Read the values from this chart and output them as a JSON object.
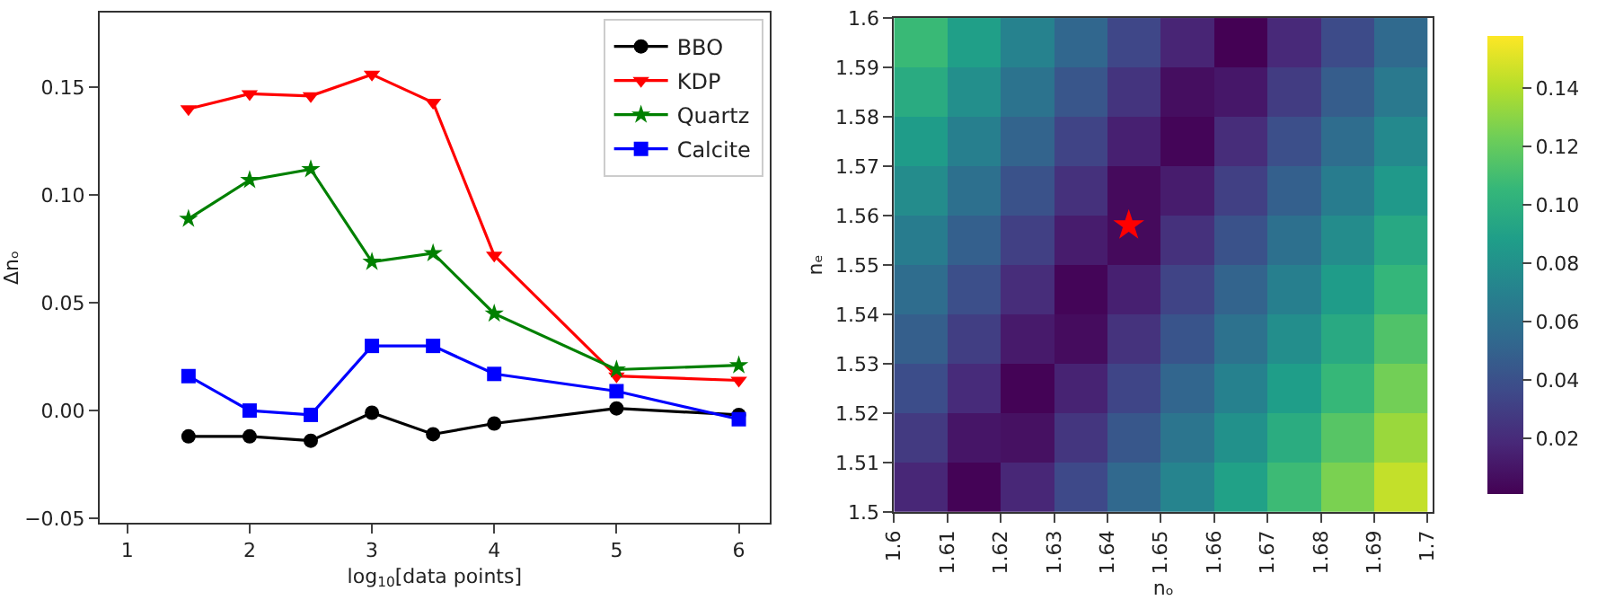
{
  "chart_data": [
    {
      "type": "line",
      "xlabel": "log$_{10}$[data points]",
      "ylabel": "Δnₒ",
      "x": [
        1.5,
        2,
        2.5,
        3,
        3.5,
        4,
        5,
        6
      ],
      "series": [
        {
          "name": "BBO",
          "color": "#000000",
          "marker": "circle",
          "values": [
            -0.012,
            -0.012,
            -0.014,
            -0.001,
            -0.011,
            -0.006,
            0.001,
            -0.002
          ]
        },
        {
          "name": "KDP",
          "color": "#ff0000",
          "marker": "triangle",
          "values": [
            0.14,
            0.147,
            0.146,
            0.156,
            0.143,
            0.072,
            0.016,
            0.014
          ]
        },
        {
          "name": "Quartz",
          "color": "#008000",
          "marker": "star",
          "values": [
            0.089,
            0.107,
            0.112,
            0.069,
            0.073,
            0.045,
            0.019,
            0.021
          ]
        },
        {
          "name": "Calcite",
          "color": "#0000ff",
          "marker": "square",
          "values": [
            0.016,
            0.0,
            -0.002,
            0.03,
            0.03,
            0.017,
            0.009,
            -0.004
          ]
        }
      ],
      "xlim": [
        0.774,
        6.25
      ],
      "xticks": [
        1,
        2,
        3,
        4,
        5,
        6
      ],
      "ylim": [
        -0.052,
        0.1847
      ],
      "yticks": [
        {
          "value": -0.05,
          "label": "−0.05"
        },
        {
          "value": 0,
          "label": "0.00"
        },
        {
          "value": 0.05,
          "label": "0.05"
        },
        {
          "value": 0.1,
          "label": "0.10"
        },
        {
          "value": 0.15,
          "label": "0.15"
        }
      ],
      "legend": "top right",
      "line_style": "solid"
    },
    {
      "type": "heatmap",
      "xlabel": "nₒ",
      "ylabel": "nₑ",
      "x": [
        1.605,
        1.615,
        1.625,
        1.635,
        1.645,
        1.655,
        1.665,
        1.675,
        1.685,
        1.695
      ],
      "y": [
        1.595,
        1.585,
        1.575,
        1.565,
        1.555,
        1.545,
        1.535,
        1.525,
        1.515,
        1.505
      ],
      "cells": [
        [
          0.107,
          0.089,
          0.071,
          0.053,
          0.035,
          0.017,
          0.001,
          0.019,
          0.037,
          0.055
        ],
        [
          0.097,
          0.079,
          0.061,
          0.043,
          0.025,
          0.007,
          0.011,
          0.029,
          0.047,
          0.065
        ],
        [
          0.087,
          0.069,
          0.051,
          0.033,
          0.015,
          0.003,
          0.021,
          0.039,
          0.057,
          0.075
        ],
        [
          0.077,
          0.059,
          0.041,
          0.023,
          0.005,
          0.013,
          0.031,
          0.049,
          0.067,
          0.085
        ],
        [
          0.067,
          0.049,
          0.031,
          0.013,
          0.005,
          0.023,
          0.041,
          0.059,
          0.077,
          0.095
        ],
        [
          0.057,
          0.039,
          0.021,
          0.003,
          0.015,
          0.033,
          0.051,
          0.069,
          0.087,
          0.105
        ],
        [
          0.048,
          0.03,
          0.012,
          0.006,
          0.024,
          0.042,
          0.06,
          0.078,
          0.096,
          0.114
        ],
        [
          0.038,
          0.02,
          0.002,
          0.016,
          0.034,
          0.052,
          0.07,
          0.088,
          0.106,
          0.124
        ],
        [
          0.028,
          0.01,
          0.008,
          0.026,
          0.044,
          0.062,
          0.08,
          0.098,
          0.116,
          0.134
        ],
        [
          0.018,
          0.002,
          0.018,
          0.036,
          0.054,
          0.072,
          0.09,
          0.108,
          0.126,
          0.144
        ]
      ],
      "clim": [
        0.001,
        0.158
      ],
      "cticks": [
        0.02,
        0.04,
        0.06,
        0.08,
        {
          "value": 0.1,
          "label": "0.10"
        },
        0.12,
        0.14
      ],
      "series": [
        {
          "type": "scatter",
          "x": [
            1.644
          ],
          "values": [
            1.558
          ],
          "color": "#ff0000",
          "marker": "star"
        }
      ],
      "xlim": [
        1.6,
        1.701
      ],
      "xticks": [
        1.6,
        1.61,
        1.62,
        1.63,
        1.64,
        1.65,
        1.66,
        1.67,
        1.68,
        1.69,
        1.7
      ],
      "ylim": [
        1.5,
        1.6
      ],
      "yticks": [
        1.5,
        1.51,
        1.52,
        1.53,
        1.54,
        1.55,
        1.56,
        1.57,
        1.58,
        1.59,
        1.6
      ],
      "legend": false
    }
  ]
}
